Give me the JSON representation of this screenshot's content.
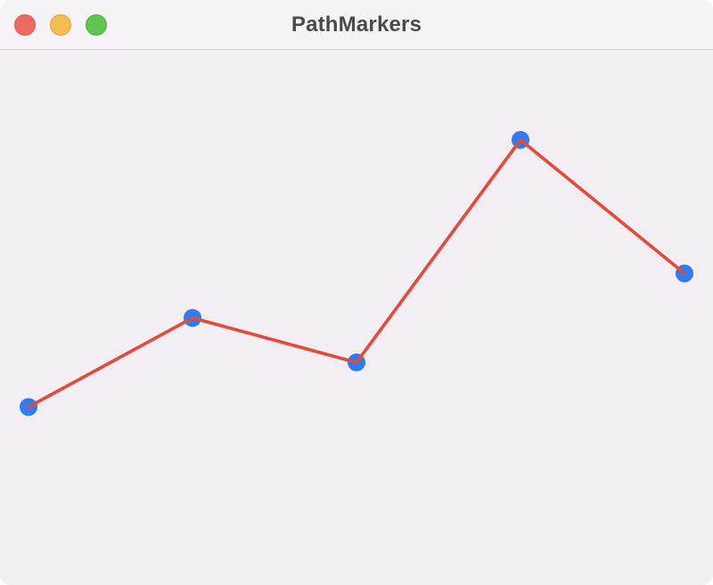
{
  "window": {
    "title": "PathMarkers",
    "buttons": [
      "close",
      "minimize",
      "zoom"
    ]
  },
  "colors": {
    "line": "#e34b3b",
    "marker": "#2f7bf2",
    "background": "#f2eef4",
    "titlebar": "#f7f2f8"
  },
  "chart_data": {
    "type": "line",
    "x": [
      0,
      1,
      2,
      3,
      4
    ],
    "values": [
      2,
      4,
      3,
      8,
      5
    ],
    "ylim": [
      -2,
      10
    ],
    "grid": false,
    "legend": "none",
    "title": "",
    "xlabel": "",
    "ylabel": ""
  }
}
